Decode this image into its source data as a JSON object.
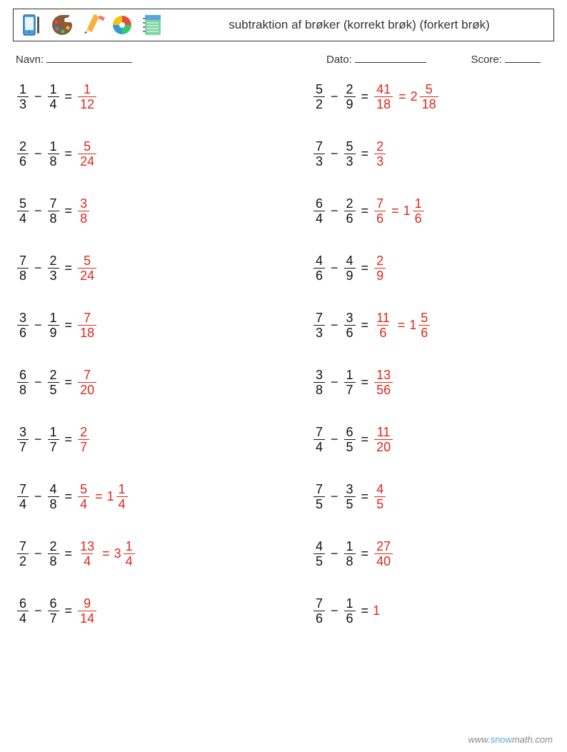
{
  "title": "subtraktion af brøker (korrekt brøk) (forkert brøk)",
  "meta": {
    "name_label": "Navn:",
    "date_label": "Dato:",
    "score_label": "Score:"
  },
  "colors": {
    "text": "#111111",
    "answer": "#e1261c",
    "border": "#333333"
  },
  "columns": [
    [
      {
        "a": {
          "n": 1,
          "d": 3
        },
        "b": {
          "n": 1,
          "d": 4
        },
        "ans": {
          "n": 1,
          "d": 12
        }
      },
      {
        "a": {
          "n": 2,
          "d": 6
        },
        "b": {
          "n": 1,
          "d": 8
        },
        "ans": {
          "n": 5,
          "d": 24
        }
      },
      {
        "a": {
          "n": 5,
          "d": 4
        },
        "b": {
          "n": 7,
          "d": 8
        },
        "ans": {
          "n": 3,
          "d": 8
        }
      },
      {
        "a": {
          "n": 7,
          "d": 8
        },
        "b": {
          "n": 2,
          "d": 3
        },
        "ans": {
          "n": 5,
          "d": 24
        }
      },
      {
        "a": {
          "n": 3,
          "d": 6
        },
        "b": {
          "n": 1,
          "d": 9
        },
        "ans": {
          "n": 7,
          "d": 18
        }
      },
      {
        "a": {
          "n": 6,
          "d": 8
        },
        "b": {
          "n": 2,
          "d": 5
        },
        "ans": {
          "n": 7,
          "d": 20
        }
      },
      {
        "a": {
          "n": 3,
          "d": 7
        },
        "b": {
          "n": 1,
          "d": 7
        },
        "ans": {
          "n": 2,
          "d": 7
        }
      },
      {
        "a": {
          "n": 7,
          "d": 4
        },
        "b": {
          "n": 4,
          "d": 8
        },
        "ans": {
          "n": 5,
          "d": 4
        },
        "mixed": {
          "w": 1,
          "n": 1,
          "d": 4
        }
      },
      {
        "a": {
          "n": 7,
          "d": 2
        },
        "b": {
          "n": 2,
          "d": 8
        },
        "ans": {
          "n": 13,
          "d": 4
        },
        "mixed": {
          "w": 3,
          "n": 1,
          "d": 4
        }
      },
      {
        "a": {
          "n": 6,
          "d": 4
        },
        "b": {
          "n": 6,
          "d": 7
        },
        "ans": {
          "n": 9,
          "d": 14
        }
      }
    ],
    [
      {
        "a": {
          "n": 5,
          "d": 2
        },
        "b": {
          "n": 2,
          "d": 9
        },
        "ans": {
          "n": 41,
          "d": 18
        },
        "mixed": {
          "w": 2,
          "n": 5,
          "d": 18
        }
      },
      {
        "a": {
          "n": 7,
          "d": 3
        },
        "b": {
          "n": 5,
          "d": 3
        },
        "ans": {
          "n": 2,
          "d": 3
        }
      },
      {
        "a": {
          "n": 6,
          "d": 4
        },
        "b": {
          "n": 2,
          "d": 6
        },
        "ans": {
          "n": 7,
          "d": 6
        },
        "mixed": {
          "w": 1,
          "n": 1,
          "d": 6
        }
      },
      {
        "a": {
          "n": 4,
          "d": 6
        },
        "b": {
          "n": 4,
          "d": 9
        },
        "ans": {
          "n": 2,
          "d": 9
        }
      },
      {
        "a": {
          "n": 7,
          "d": 3
        },
        "b": {
          "n": 3,
          "d": 6
        },
        "ans": {
          "n": 11,
          "d": 6
        },
        "mixed": {
          "w": 1,
          "n": 5,
          "d": 6
        }
      },
      {
        "a": {
          "n": 3,
          "d": 8
        },
        "b": {
          "n": 1,
          "d": 7
        },
        "ans": {
          "n": 13,
          "d": 56
        }
      },
      {
        "a": {
          "n": 7,
          "d": 4
        },
        "b": {
          "n": 6,
          "d": 5
        },
        "ans": {
          "n": 11,
          "d": 20
        }
      },
      {
        "a": {
          "n": 7,
          "d": 5
        },
        "b": {
          "n": 3,
          "d": 5
        },
        "ans": {
          "n": 4,
          "d": 5
        }
      },
      {
        "a": {
          "n": 4,
          "d": 5
        },
        "b": {
          "n": 1,
          "d": 8
        },
        "ans": {
          "n": 27,
          "d": 40
        }
      },
      {
        "a": {
          "n": 7,
          "d": 6
        },
        "b": {
          "n": 1,
          "d": 6
        },
        "ans_int": 1
      }
    ]
  ],
  "footer": {
    "prefix": "www.",
    "brand": "snow",
    "suffix": "math.com"
  }
}
